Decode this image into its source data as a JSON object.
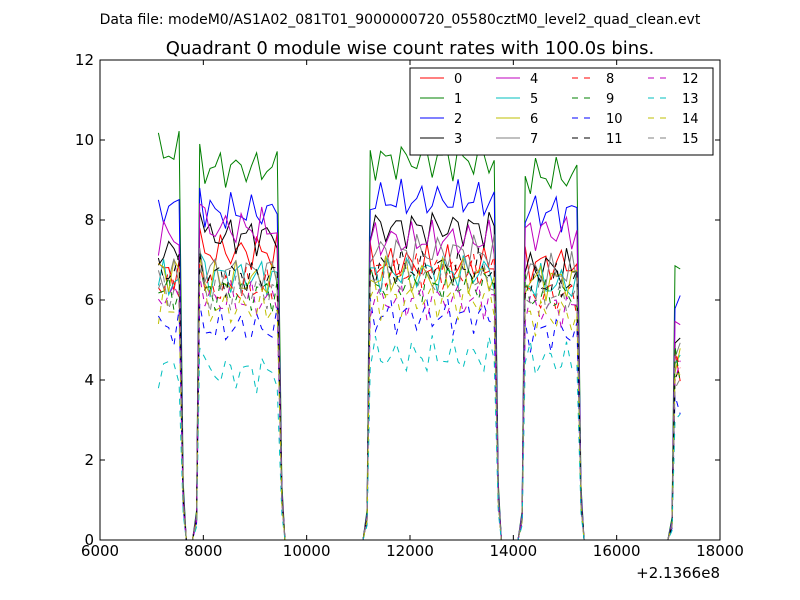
{
  "chart_data": {
    "type": "line",
    "suptitle": "Data file: modeM0/AS1A02_081T01_9000000720_05580cztM0_level2_quad_clean.evt",
    "title": "Quadrant 0 module wise count rates with 100.0s bins.",
    "xlabel": "",
    "ylabel": "",
    "x_offset_label": "+2.1366e8",
    "xlim": [
      6000,
      18000
    ],
    "ylim": [
      0,
      12
    ],
    "xticks": [
      6000,
      8000,
      10000,
      12000,
      14000,
      16000,
      18000
    ],
    "yticks": [
      0,
      2,
      4,
      6,
      8,
      10,
      12
    ],
    "xtick_labels": [
      "6000",
      "8000",
      "10000",
      "12000",
      "14000",
      "16000",
      "18000"
    ],
    "ytick_labels": [
      "0",
      "2",
      "4",
      "6",
      "8",
      "10",
      "12"
    ],
    "legend_position": "top-right",
    "legend_columns": 4,
    "segments": [
      {
        "start": 7130,
        "end": 7530,
        "follow": "drop"
      },
      {
        "start": 7930,
        "end": 9440,
        "follow": "drop"
      },
      {
        "start": 11230,
        "end": 13630,
        "follow": "drop"
      },
      {
        "start": 14230,
        "end": 15230,
        "follow": "drop"
      },
      {
        "start": 17130,
        "end": 17280,
        "follow": "end"
      }
    ],
    "series": [
      {
        "name": "0",
        "color": "#ff0000",
        "dash": "solid",
        "seg_levels": [
          6.7,
          7.2,
          6.9,
          6.9,
          4.5
        ]
      },
      {
        "name": "1",
        "color": "#008000",
        "dash": "solid",
        "seg_levels": [
          9.7,
          9.3,
          9.5,
          9.1,
          7.0
        ]
      },
      {
        "name": "2",
        "color": "#0000ff",
        "dash": "solid",
        "seg_levels": [
          8.3,
          8.2,
          8.5,
          8.2,
          5.9
        ]
      },
      {
        "name": "3",
        "color": "#000000",
        "dash": "solid",
        "seg_levels": [
          7.2,
          7.6,
          7.8,
          6.8,
          4.8
        ]
      },
      {
        "name": "4",
        "color": "#bf00bf",
        "dash": "solid",
        "seg_levels": [
          7.6,
          7.8,
          7.5,
          7.7,
          5.4
        ]
      },
      {
        "name": "5",
        "color": "#00bfbf",
        "dash": "solid",
        "seg_levels": [
          6.5,
          6.6,
          6.7,
          6.4,
          4.7
        ]
      },
      {
        "name": "6",
        "color": "#bfbf00",
        "dash": "solid",
        "seg_levels": [
          6.7,
          6.5,
          6.6,
          6.5,
          4.6
        ]
      },
      {
        "name": "7",
        "color": "#808080",
        "dash": "solid",
        "seg_levels": [
          6.6,
          6.7,
          7.2,
          6.7,
          4.6
        ]
      },
      {
        "name": "8",
        "color": "#ff0000",
        "dash": "dash",
        "seg_levels": [
          6.4,
          6.3,
          6.7,
          6.1,
          4.3
        ]
      },
      {
        "name": "9",
        "color": "#008000",
        "dash": "dash",
        "seg_levels": [
          6.2,
          6.2,
          6.4,
          6.1,
          4.4
        ]
      },
      {
        "name": "10",
        "color": "#0000ff",
        "dash": "dash",
        "seg_levels": [
          5.3,
          5.3,
          5.6,
          5.2,
          3.6
        ]
      },
      {
        "name": "11",
        "color": "#000000",
        "dash": "dash",
        "seg_levels": [
          6.7,
          6.6,
          6.8,
          6.4,
          4.3
        ]
      },
      {
        "name": "12",
        "color": "#bf00bf",
        "dash": "dash",
        "seg_levels": [
          6.1,
          6.0,
          6.0,
          5.8,
          4.1
        ]
      },
      {
        "name": "13",
        "color": "#00bfbf",
        "dash": "dash",
        "seg_levels": [
          4.3,
          4.2,
          4.6,
          4.5,
          2.9
        ]
      },
      {
        "name": "14",
        "color": "#bfbf00",
        "dash": "dash",
        "seg_levels": [
          5.8,
          5.8,
          6.0,
          5.6,
          4.2
        ]
      },
      {
        "name": "15",
        "color": "#808080",
        "dash": "dash",
        "seg_levels": [
          6.2,
          6.2,
          6.5,
          6.1,
          4.1
        ]
      }
    ]
  }
}
